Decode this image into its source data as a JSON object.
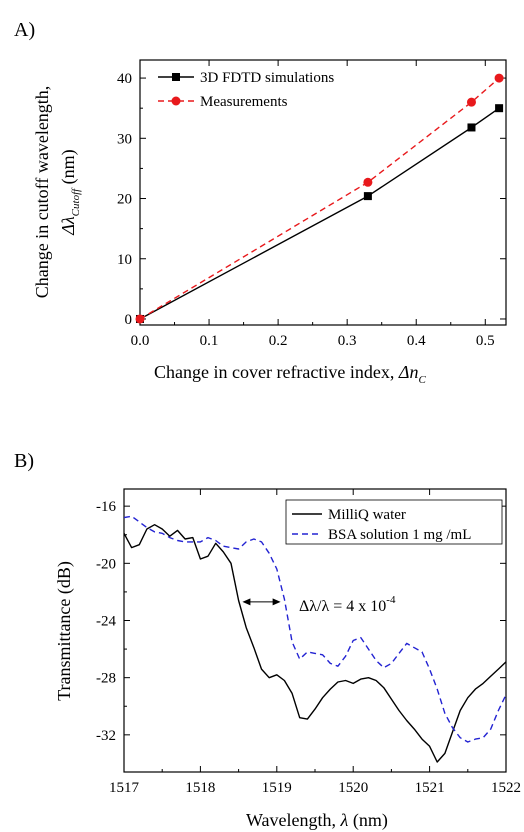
{
  "panels": {
    "a": {
      "letter": "A)"
    },
    "b": {
      "letter": "B)"
    }
  },
  "chart_data": [
    {
      "type": "line",
      "xlabel_main": "Change in cover refractive index, ",
      "xlabel_symbol": "Δn",
      "xlabel_sub": "C",
      "ylabel_line1": "Change in cutoff wavelength,",
      "ylabel_symbol": "Δλ",
      "ylabel_sub": "Cutoff",
      "ylabel_unit": " (nm)",
      "xlim": [
        0,
        0.53
      ],
      "ylim": [
        -1,
        43
      ],
      "xticks": [
        0.0,
        0.1,
        0.2,
        0.3,
        0.4,
        0.5
      ],
      "xtick_labels": [
        "0.0",
        "0.1",
        "0.2",
        "0.3",
        "0.4",
        "0.5"
      ],
      "yticks": [
        0,
        10,
        20,
        30,
        40
      ],
      "ytick_labels": [
        "0",
        "10",
        "20",
        "30",
        "40"
      ],
      "legend_position": "top-left",
      "series": [
        {
          "name": "3D FDTD simulations",
          "color": "#000000",
          "marker": "square",
          "line": "solid",
          "x": [
            0.0,
            0.33,
            0.48,
            0.52
          ],
          "y": [
            0.0,
            20.4,
            31.8,
            35.0
          ]
        },
        {
          "name": "Measurements",
          "color": "#e8191c",
          "marker": "circle",
          "line": "dashed",
          "x": [
            0.0,
            0.33,
            0.48,
            0.52
          ],
          "y": [
            0.0,
            22.7,
            36.0,
            40.0
          ]
        }
      ]
    },
    {
      "type": "line",
      "xlabel_main": "Wavelength, ",
      "xlabel_symbol": "λ",
      "xlabel_unit": " (nm)",
      "ylabel": "Transmittance (dB)",
      "xlim": [
        1517,
        1522
      ],
      "ylim": [
        -34.6,
        -14.8
      ],
      "xticks": [
        1517,
        1518,
        1519,
        1520,
        1521,
        1522
      ],
      "xtick_labels": [
        "1517",
        "1518",
        "1519",
        "1520",
        "1521",
        "1522"
      ],
      "yticks": [
        -16,
        -20,
        -24,
        -28,
        -32
      ],
      "ytick_labels": [
        "-16",
        "-20",
        "-24",
        "-28",
        "-32"
      ],
      "legend_position": "top-right",
      "annotation": {
        "text": "Δλ/λ = 4 x 10",
        "exponent": "-4",
        "arrow_x": [
          1518.55,
          1519.05
        ],
        "arrow_y": -22.7
      },
      "series": [
        {
          "name": "MilliQ water",
          "color": "#000000",
          "line": "solid",
          "x": [
            1517.0,
            1517.1,
            1517.2,
            1517.3,
            1517.4,
            1517.5,
            1517.6,
            1517.7,
            1517.8,
            1517.9,
            1518.0,
            1518.1,
            1518.2,
            1518.3,
            1518.4,
            1518.5,
            1518.6,
            1518.7,
            1518.8,
            1518.9,
            1519.0,
            1519.1,
            1519.2,
            1519.3,
            1519.4,
            1519.5,
            1519.6,
            1519.7,
            1519.8,
            1519.9,
            1520.0,
            1520.1,
            1520.2,
            1520.3,
            1520.4,
            1520.5,
            1520.6,
            1520.7,
            1520.8,
            1520.9,
            1521.0,
            1521.1,
            1521.2,
            1521.3,
            1521.4,
            1521.5,
            1521.6,
            1521.7,
            1521.8,
            1521.9,
            1522.0
          ],
          "y": [
            -17.9,
            -18.9,
            -18.7,
            -17.6,
            -17.3,
            -17.6,
            -18.1,
            -17.7,
            -18.3,
            -18.2,
            -19.7,
            -19.5,
            -18.6,
            -19.2,
            -20.0,
            -22.6,
            -24.5,
            -25.9,
            -27.4,
            -28.0,
            -27.8,
            -28.2,
            -29.1,
            -30.8,
            -30.9,
            -30.2,
            -29.4,
            -28.8,
            -28.3,
            -28.2,
            -28.4,
            -28.1,
            -28.0,
            -28.2,
            -28.7,
            -29.5,
            -30.3,
            -31.0,
            -31.6,
            -32.3,
            -32.8,
            -33.9,
            -33.3,
            -31.8,
            -30.3,
            -29.4,
            -28.8,
            -28.4,
            -27.9,
            -27.4,
            -26.9
          ]
        },
        {
          "name": "BSA solution 1 mg /mL",
          "color": "#2323d2",
          "line": "dashed",
          "x": [
            1517.0,
            1517.1,
            1517.2,
            1517.3,
            1517.4,
            1517.5,
            1517.6,
            1517.7,
            1517.8,
            1517.9,
            1518.0,
            1518.1,
            1518.2,
            1518.3,
            1518.4,
            1518.5,
            1518.6,
            1518.7,
            1518.8,
            1518.9,
            1519.0,
            1519.1,
            1519.2,
            1519.3,
            1519.4,
            1519.5,
            1519.6,
            1519.7,
            1519.8,
            1519.9,
            1520.0,
            1520.1,
            1520.2,
            1520.3,
            1520.4,
            1520.5,
            1520.6,
            1520.7,
            1520.8,
            1520.9,
            1521.0,
            1521.1,
            1521.2,
            1521.3,
            1521.4,
            1521.5,
            1521.6,
            1521.7,
            1521.8,
            1521.9,
            1522.0
          ],
          "y": [
            -16.8,
            -16.7,
            -17.1,
            -17.5,
            -17.8,
            -17.9,
            -18.2,
            -18.4,
            -18.5,
            -18.5,
            -18.5,
            -18.2,
            -18.4,
            -18.8,
            -18.9,
            -19.0,
            -18.5,
            -18.3,
            -18.5,
            -19.3,
            -20.4,
            -22.5,
            -25.5,
            -26.7,
            -26.2,
            -26.3,
            -26.4,
            -27.0,
            -27.2,
            -26.5,
            -25.4,
            -25.2,
            -26.0,
            -26.8,
            -27.3,
            -27.0,
            -26.3,
            -25.6,
            -25.9,
            -26.2,
            -27.4,
            -28.8,
            -30.5,
            -31.5,
            -32.2,
            -32.5,
            -32.3,
            -32.2,
            -31.6,
            -30.3,
            -29.2
          ]
        }
      ]
    }
  ]
}
